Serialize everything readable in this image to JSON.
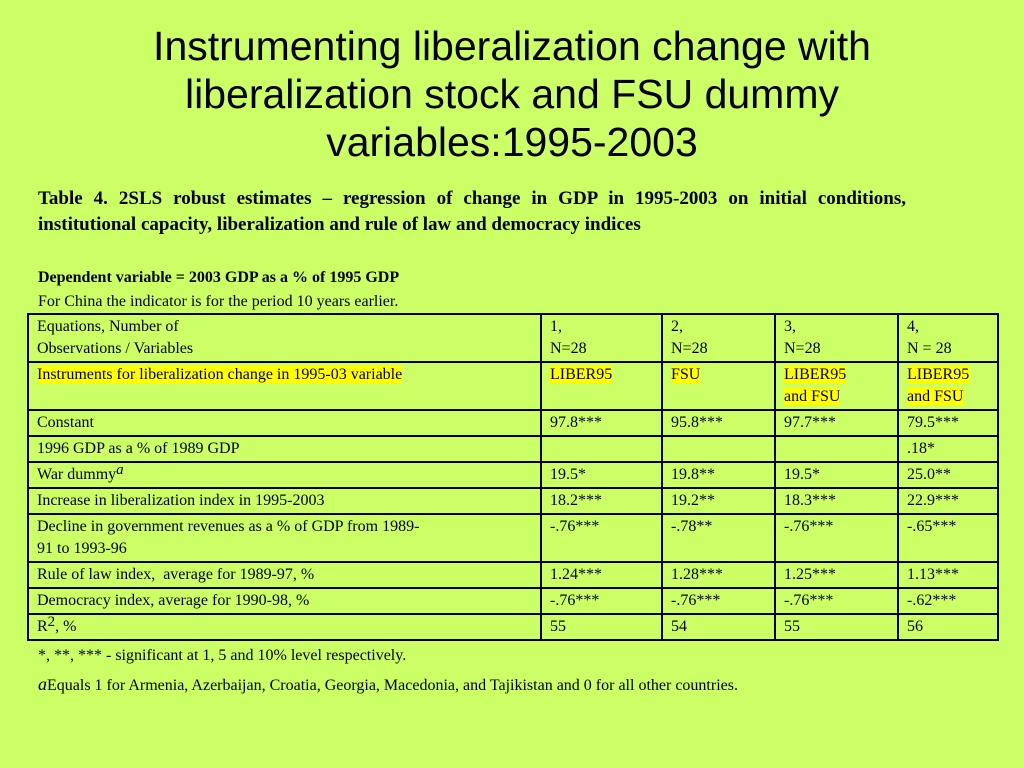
{
  "title": "Instrumenting liberalization change with liberalization stock and FSU dummy variables:1995-2003",
  "caption": "Table 4. 2SLS robust estimates – regression of change in GDP in 1995-2003 on initial conditions, institutional capacity, liberalization and rule of law and democracy indices",
  "dependent_variable": "Dependent variable = 2003 GDP as a % of 1995 GDP",
  "china_note": "For China the indicator is for the period 10 years earlier.",
  "table": {
    "header": {
      "label_line1": "Equations, Number of",
      "label_line2": "Observations / Variables",
      "cols": [
        {
          "num": "1,",
          "n": "N=28"
        },
        {
          "num": "2,",
          "n": "N=28"
        },
        {
          "num": "3,",
          "n": "N=28"
        },
        {
          "num": "4,",
          "n": "N = 28"
        }
      ]
    },
    "instruments": {
      "label": "Instruments for liberalization change in 1995-03 variable",
      "c1": "LIBER95",
      "c2": "FSU",
      "c3_line1": "LIBER95",
      "c3_line2": "and FSU",
      "c4_line1": "LIBER95",
      "c4_line2": "and FSU"
    },
    "rows": {
      "constant": {
        "label": "Constant",
        "v1": "97.8***",
        "v2": "95.8***",
        "v3": "97.7***",
        "v4": "79.5***"
      },
      "gdp1996": {
        "label": "1996 GDP as a % of 1989 GDP",
        "v1": "",
        "v2": "",
        "v3": "",
        "v4": ".18*"
      },
      "war": {
        "label": "War dummy",
        "mark": "a",
        "v1": "19.5*",
        "v2": "19.8**",
        "v3": "19.5*",
        "v4": "25.0**"
      },
      "liber_increase": {
        "label": "Increase in liberalization index in 1995-2003",
        "v1": "18.2***",
        "v2": "19.2**",
        "v3": "18.3***",
        "v4": "22.9***"
      },
      "revenues": {
        "label_line1": "Decline in government revenues as a % of GDP from 1989-",
        "label_line2": "91 to 1993-96",
        "v1": "-.76***",
        "v2": "-.78**",
        "v3": "-.76***",
        "v4": "-.65***"
      },
      "rule_of_law": {
        "label": "Rule of law index,  average for 1989-97, %",
        "v1": "1.24***",
        "v2": "1.28***",
        "v3": "1.25***",
        "v4": "1.13***"
      },
      "democracy": {
        "label": "Democracy index, average for 1990-98, %",
        "v1": "-.76***",
        "v2": "-.76***",
        "v3": "-.76***",
        "v4": "-.62***"
      },
      "r2": {
        "label_r": "R",
        "label_sup": "2",
        "label_rest": ", %",
        "v1": "55",
        "v2": "54",
        "v3": "55",
        "v4": "56"
      }
    }
  },
  "significance_note": "*, **, *** - significant at 1, 5 and 10% level respectively.",
  "footnote": {
    "mark": "a",
    "text": "Equals 1 for Armenia, Azerbaijan, Croatia, Georgia, Macedonia, and Tajikistan and 0 for all other countries."
  },
  "colors": {
    "background": "#ccff66",
    "highlight": "#ffff00"
  }
}
